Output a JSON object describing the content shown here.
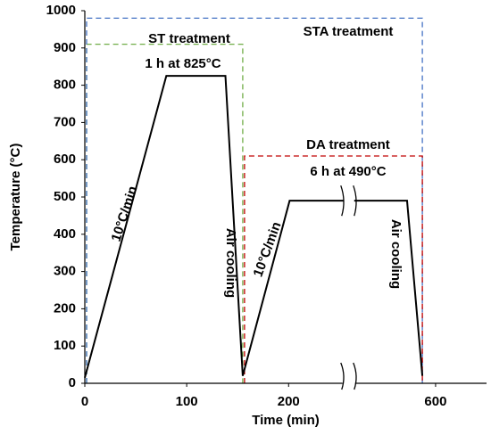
{
  "chart_data": {
    "type": "line",
    "x_label": "Time (min)",
    "y_label": "Temperature (°C)",
    "xlim": [
      0,
      650
    ],
    "xbreak": [
      253,
      521
    ],
    "xticks": [
      0,
      100,
      200,
      600
    ],
    "ylim": [
      0,
      1000
    ],
    "yticks": [
      0,
      100,
      200,
      300,
      400,
      500,
      600,
      700,
      800,
      900,
      1000
    ],
    "series": [
      {
        "color": "#000000",
        "x": [
          0,
          80,
          138,
          155,
          201,
          572,
          587
        ],
        "values": [
          15,
          825,
          825,
          20,
          490,
          490,
          20
        ]
      }
    ],
    "regions": [
      {
        "label": "ST treatment",
        "color": "#70ad47",
        "x": [
          0,
          155
        ],
        "top": 910
      },
      {
        "label": "STA treatment",
        "color": "#4472c4",
        "x": [
          0,
          587
        ],
        "top": 980
      },
      {
        "label": "DA treatment",
        "color": "#c00000",
        "x": [
          155,
          587
        ],
        "top": 610
      }
    ],
    "annotations": [
      "1 h at 825°C",
      "10°C/min",
      "Air cooling",
      "6 h at 490°C",
      "10°C/min",
      "Air cooling"
    ]
  }
}
